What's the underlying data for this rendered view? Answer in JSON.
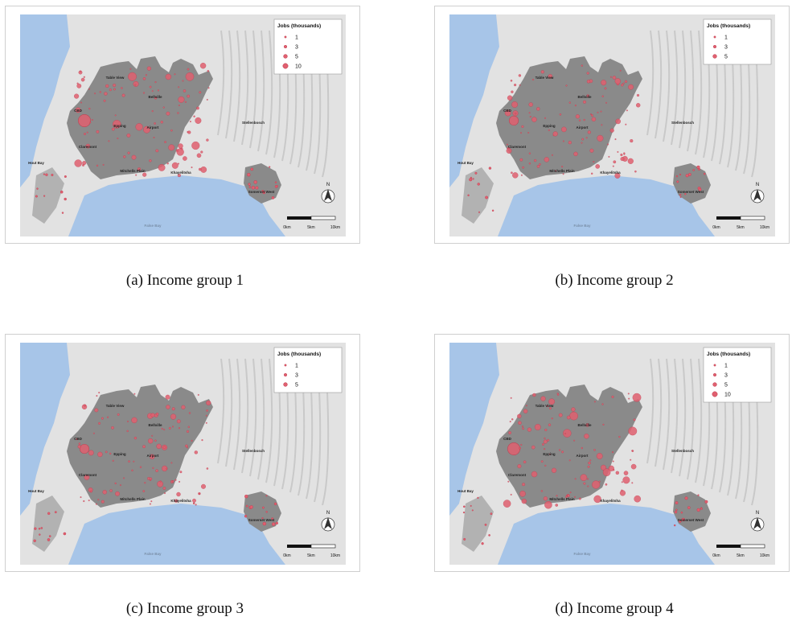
{
  "panels": [
    {
      "id": "a",
      "caption": "(a) Income group 1",
      "legend_title": "Jobs (thousands)",
      "legend": [
        "1",
        "3",
        "5",
        "10"
      ]
    },
    {
      "id": "b",
      "caption": "(b) Income group 2",
      "legend_title": "Jobs (thousands)",
      "legend": [
        "1",
        "3",
        "5"
      ]
    },
    {
      "id": "c",
      "caption": "(c) Income group 3",
      "legend_title": "Jobs (thousands)",
      "legend": [
        "1",
        "3",
        "5"
      ]
    },
    {
      "id": "d",
      "caption": "(d) Income group 4",
      "legend_title": "Jobs (thousands)",
      "legend": [
        "1",
        "3",
        "5",
        "10"
      ]
    }
  ],
  "place_labels": [
    "CBD",
    "Table View",
    "Bellville",
    "Epping",
    "Airport",
    "Claremont",
    "Stellenbosch",
    "Mitchells Plain",
    "Khayelitsha",
    "Hout Bay",
    "Somerset West",
    "False Bay"
  ],
  "scale_bar": {
    "labels": [
      "0km",
      "5km",
      "10km"
    ]
  },
  "north_label": "N",
  "colors": {
    "sea": "#a7c5e8",
    "land": "#e2e2e2",
    "urban": "#8a8a8a",
    "dot": "#e06070",
    "dot_stroke": "#c03a4c"
  }
}
